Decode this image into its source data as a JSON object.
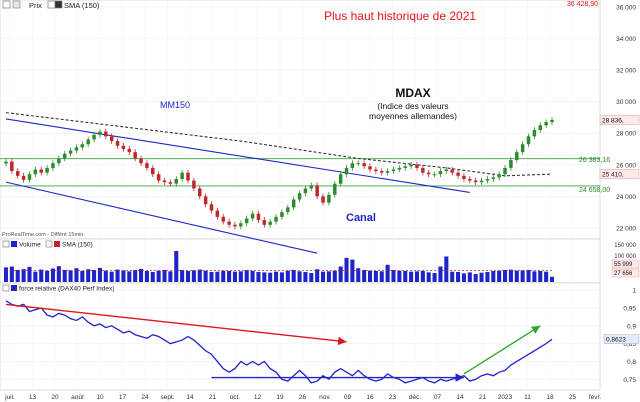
{
  "header": {
    "checkbox_label": "☑",
    "price_label": "Prix",
    "sma_label": "SMA (150)",
    "top_right_price": "36 428,90"
  },
  "annotations": {
    "headline": "Plus haut historique de 2021",
    "title": "MDAX",
    "subtitle_1": "(Indice des valeurs",
    "subtitle_2": "moyennes allemandes)",
    "mm150": "MM150",
    "canal": "Canal",
    "level_high": "26 383,16",
    "level_low": "24 658,00",
    "source": "ProRealTime.com - Différé 15min"
  },
  "colors": {
    "up": "#2e8b2e",
    "down": "#c0272d",
    "channel": "#1f24c8",
    "support": "#3aa43a",
    "sma": "#333333",
    "volume": "#1f24c8",
    "rs_line": "#1f24c8",
    "arrow_down": "#e0141e",
    "arrow_flat": "#1f24c8",
    "arrow_up": "#2ea62e",
    "headline": "#e0141e",
    "price_badge": "#ffe9e9"
  },
  "chart_data": {
    "type": "candlestick",
    "price_axis": {
      "ticks": [
        22000,
        24000,
        26000,
        28000,
        30000,
        32000,
        34000,
        36000
      ],
      "tick_labels": [
        "22 000",
        "24 000",
        "26 000",
        "28 000",
        "30 000",
        "32 000",
        "34 000",
        "36 000"
      ],
      "range": [
        21300,
        36430
      ]
    },
    "price_badges": [
      {
        "value": 28836,
        "label": "28 836,"
      },
      {
        "value": 25410,
        "label": "25 410,"
      }
    ],
    "support_levels": [
      26383.16,
      24658.0
    ],
    "x_axis_labels": [
      "juil.",
      "13",
      "20",
      "août",
      "10",
      "17",
      "24",
      "sept.",
      "14",
      "21",
      "oct.",
      "12",
      "19",
      "26",
      "nov.",
      "09",
      "16",
      "23",
      "déc.",
      "07",
      "14",
      "21",
      "2023",
      "11",
      "18",
      "25",
      "févr."
    ],
    "close": [
      26200,
      25600,
      25300,
      25050,
      25400,
      25700,
      25500,
      25800,
      26100,
      26400,
      26700,
      26900,
      27100,
      27300,
      27600,
      27900,
      28100,
      27800,
      27500,
      27200,
      27000,
      26800,
      26400,
      26100,
      25800,
      25400,
      25000,
      24900,
      24800,
      25100,
      25500,
      25000,
      24500,
      24000,
      23500,
      23100,
      22700,
      22400,
      22200,
      22100,
      22300,
      22600,
      22900,
      22500,
      22200,
      22400,
      22700,
      23000,
      23300,
      23800,
      24200,
      24500,
      24700,
      24000,
      23600,
      24100,
      24800,
      25400,
      25800,
      26100,
      26100,
      25900,
      25700,
      25600,
      25500,
      25600,
      25700,
      25800,
      25900,
      26000,
      25800,
      25500,
      25400,
      25400,
      25600,
      25700,
      25500,
      25300,
      25100,
      25000,
      24900,
      25000,
      25100,
      25200,
      25400,
      25800,
      26300,
      26800,
      27300,
      27800,
      28200,
      28500,
      28700,
      28836
    ],
    "sma150": [
      {
        "i": 0,
        "v": 29300
      },
      {
        "i": 20,
        "v": 28400
      },
      {
        "i": 40,
        "v": 27500
      },
      {
        "i": 60,
        "v": 26400
      },
      {
        "i": 75,
        "v": 25800
      },
      {
        "i": 85,
        "v": 25300
      },
      {
        "i": 93,
        "v": 25410
      }
    ],
    "channel": {
      "upper": [
        {
          "i": 0,
          "v": 28900
        },
        {
          "i": 79,
          "v": 24250
        }
      ],
      "lower": [
        {
          "i": 0,
          "v": 24900
        },
        {
          "i": 53,
          "v": 20400
        }
      ]
    },
    "volume_panel": {
      "label": "Volume",
      "sma_label": "SMA (150)",
      "axis_labels": [
        "150 000",
        "100 000"
      ],
      "badges": [
        "55 999",
        "27 656"
      ],
      "values": [
        85000,
        90000,
        70000,
        75000,
        88000,
        60000,
        72000,
        65000,
        78000,
        92000,
        70000,
        68000,
        80000,
        64000,
        74000,
        70000,
        82000,
        66000,
        60000,
        72000,
        68000,
        62000,
        70000,
        76000,
        64000,
        58000,
        66000,
        70000,
        62000,
        180000,
        70000,
        64000,
        68000,
        72000,
        66000,
        58000,
        60000,
        66000,
        64000,
        60000,
        62000,
        70000,
        64000,
        58000,
        56000,
        54000,
        60000,
        56000,
        66000,
        70000,
        62000,
        58000,
        52000,
        74000,
        60000,
        62000,
        66000,
        90000,
        140000,
        130000,
        80000,
        70000,
        66000,
        64000,
        62000,
        100000,
        70000,
        66000,
        64000,
        60000,
        62000,
        64000,
        56000,
        52000,
        90000,
        148000,
        60000,
        58000,
        50000,
        56000,
        46000,
        54000,
        58000,
        64000,
        66000,
        70000,
        72000,
        66000,
        68000,
        70000,
        62000,
        64000,
        60000,
        30000
      ],
      "sma": 66000,
      "range": [
        0,
        180000
      ]
    },
    "rs_panel": {
      "label": "force relative (DAX40 Perf Index)",
      "axis_labels": [
        "1",
        "0,95",
        "0,9",
        "0,85",
        "0,8",
        "0,75"
      ],
      "badge": "0,8623",
      "range": [
        0.72,
        1.02
      ],
      "values": [
        0.97,
        0.96,
        0.955,
        0.96,
        0.94,
        0.945,
        0.95,
        0.93,
        0.925,
        0.935,
        0.93,
        0.92,
        0.915,
        0.925,
        0.91,
        0.9,
        0.905,
        0.895,
        0.9,
        0.89,
        0.88,
        0.885,
        0.875,
        0.87,
        0.865,
        0.875,
        0.87,
        0.86,
        0.85,
        0.855,
        0.86,
        0.87,
        0.86,
        0.845,
        0.83,
        0.82,
        0.8,
        0.78,
        0.77,
        0.78,
        0.8,
        0.79,
        0.8,
        0.79,
        0.8,
        0.78,
        0.77,
        0.75,
        0.745,
        0.76,
        0.775,
        0.76,
        0.74,
        0.745,
        0.76,
        0.75,
        0.77,
        0.78,
        0.77,
        0.76,
        0.775,
        0.76,
        0.75,
        0.745,
        0.75,
        0.765,
        0.755,
        0.75,
        0.74,
        0.745,
        0.75,
        0.755,
        0.745,
        0.74,
        0.75,
        0.745,
        0.75,
        0.755,
        0.76,
        0.745,
        0.75,
        0.76,
        0.765,
        0.76,
        0.77,
        0.775,
        0.79,
        0.8,
        0.81,
        0.82,
        0.83,
        0.84,
        0.85,
        0.8623
      ]
    },
    "arrows": [
      {
        "color": "arrow_down",
        "from": {
          "i": 0,
          "v": 0.96
        },
        "to": {
          "i": 58,
          "v": 0.855
        }
      },
      {
        "color": "arrow_flat",
        "from": {
          "i": 35,
          "v": 0.755
        },
        "to": {
          "i": 78,
          "v": 0.755
        }
      },
      {
        "color": "arrow_up",
        "from": {
          "i": 78,
          "v": 0.765
        },
        "to": {
          "i": 91,
          "v": 0.9
        }
      }
    ]
  }
}
